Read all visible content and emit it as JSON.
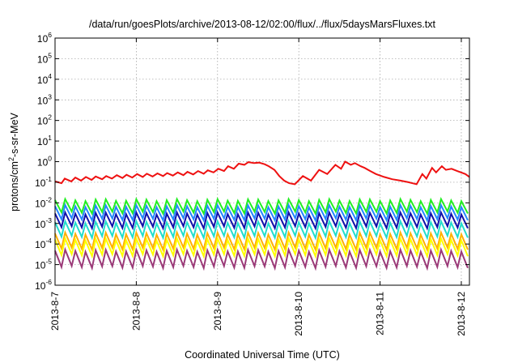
{
  "chart_data": {
    "type": "line",
    "title": "/data/run/goesPlots/archive/2013-08-12/02:00/flux/../flux/5daysMarsFluxes.txt",
    "xlabel": "Coordinated Universal Time (UTC)",
    "ylabel": "protons/cm2-s-sr-MeV",
    "ylabel_parts": {
      "main": "protons/cm",
      "sup": "2",
      "rest": "-s-sr-MeV"
    },
    "yscale": "log",
    "ylim": [
      1e-06,
      1000000.0
    ],
    "yticks": [
      {
        "base": "10",
        "exp": "6",
        "value": 1000000.0
      },
      {
        "base": "10",
        "exp": "5",
        "value": 100000.0
      },
      {
        "base": "10",
        "exp": "4",
        "value": 10000.0
      },
      {
        "base": "10",
        "exp": "3",
        "value": 1000.0
      },
      {
        "base": "10",
        "exp": "2",
        "value": 100.0
      },
      {
        "base": "10",
        "exp": "1",
        "value": 10.0
      },
      {
        "base": "10",
        "exp": "0",
        "value": 1.0
      },
      {
        "base": "10",
        "exp": "-1",
        "value": 0.1
      },
      {
        "base": "10",
        "exp": "-2",
        "value": 0.01
      },
      {
        "base": "10",
        "exp": "-3",
        "value": 0.001
      },
      {
        "base": "10",
        "exp": "-4",
        "value": 0.0001
      },
      {
        "base": "10",
        "exp": "-5",
        "value": 1e-05
      },
      {
        "base": "10",
        "exp": "-6",
        "value": 1e-06
      }
    ],
    "xlim_days": [
      0,
      5.1
    ],
    "xticks": [
      {
        "label": "2013-8-7",
        "day": 0
      },
      {
        "label": "2013-8-8",
        "day": 1
      },
      {
        "label": "2013-8-9",
        "day": 2
      },
      {
        "label": "2013-8-10",
        "day": 3
      },
      {
        "label": "2013-8-11",
        "day": 4
      },
      {
        "label": "2013-8-12",
        "day": 5
      }
    ],
    "grid": true,
    "legend": "none",
    "series": [
      {
        "color": "#ee1111",
        "kind": "red",
        "x": [
          0.0,
          0.08,
          0.12,
          0.2,
          0.25,
          0.32,
          0.38,
          0.45,
          0.5,
          0.58,
          0.63,
          0.7,
          0.76,
          0.83,
          0.88,
          0.95,
          1.01,
          1.08,
          1.13,
          1.2,
          1.26,
          1.33,
          1.38,
          1.45,
          1.51,
          1.58,
          1.63,
          1.7,
          1.76,
          1.83,
          1.88,
          1.95,
          2.01,
          2.08,
          2.13,
          2.2,
          2.26,
          2.33,
          2.38,
          2.45,
          2.51,
          2.58,
          2.63,
          2.7,
          2.76,
          2.82,
          2.88,
          2.95,
          3.05,
          3.15,
          3.25,
          3.35,
          3.45,
          3.52,
          3.57,
          3.64,
          3.69,
          3.76,
          3.81,
          3.88,
          3.95,
          4.05,
          4.15,
          4.25,
          4.35,
          4.45,
          4.52,
          4.57,
          4.64,
          4.69,
          4.76,
          4.81,
          4.88,
          4.95,
          5.05,
          5.1
        ],
        "y": [
          0.11,
          0.09,
          0.15,
          0.11,
          0.17,
          0.12,
          0.18,
          0.13,
          0.19,
          0.14,
          0.2,
          0.15,
          0.22,
          0.16,
          0.23,
          0.17,
          0.25,
          0.18,
          0.26,
          0.19,
          0.27,
          0.2,
          0.28,
          0.21,
          0.3,
          0.22,
          0.32,
          0.24,
          0.35,
          0.26,
          0.38,
          0.3,
          0.45,
          0.35,
          0.6,
          0.45,
          0.8,
          0.7,
          0.95,
          0.85,
          0.9,
          0.75,
          0.6,
          0.4,
          0.2,
          0.12,
          0.09,
          0.08,
          0.2,
          0.12,
          0.4,
          0.25,
          0.7,
          0.45,
          1.0,
          0.7,
          0.85,
          0.6,
          0.5,
          0.35,
          0.25,
          0.18,
          0.14,
          0.12,
          0.1,
          0.08,
          0.25,
          0.15,
          0.5,
          0.3,
          0.6,
          0.4,
          0.45,
          0.35,
          0.25,
          0.18
        ]
      },
      {
        "color": "#22ee22",
        "kind": "sawtooth",
        "base": 0.0085,
        "amp": 0.6
      },
      {
        "color": "#2288ff",
        "kind": "sawtooth",
        "base": 0.0042,
        "amp": 0.65
      },
      {
        "color": "#1111aa",
        "kind": "sawtooth",
        "base": 0.0018,
        "amp": 0.7
      },
      {
        "color": "#22ddcc",
        "kind": "sawtooth",
        "base": 0.00065,
        "amp": 0.75
      },
      {
        "color": "#ffb000",
        "kind": "sawtooth",
        "base": 0.00018,
        "amp": 0.8
      },
      {
        "color": "#ffff00",
        "kind": "sawtooth",
        "base": 9e-05,
        "amp": 0.85
      },
      {
        "color": "#9b3a78",
        "kind": "sawtooth",
        "base": 2.5e-05,
        "amp": 0.9
      }
    ]
  }
}
